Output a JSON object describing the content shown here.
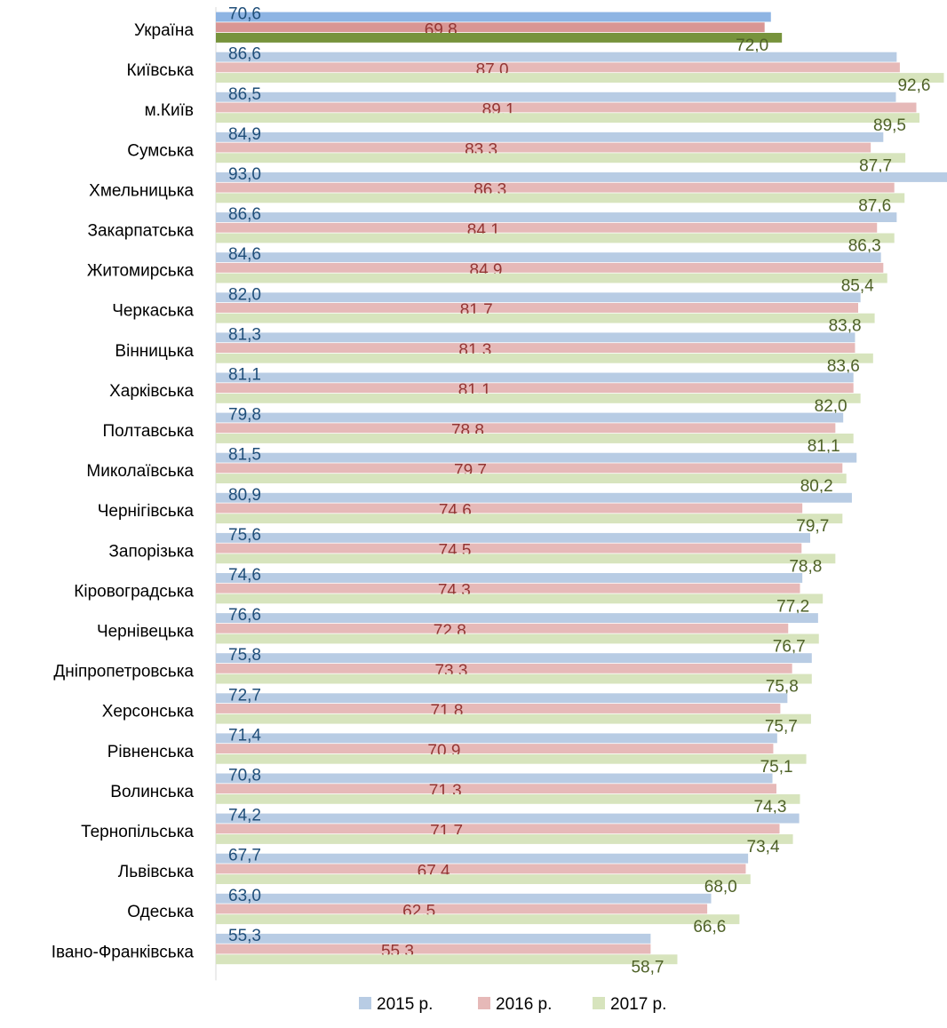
{
  "chart_data": {
    "type": "bar",
    "orientation": "horizontal",
    "categories": [
      "Україна",
      "Київська",
      "м.Київ",
      "Сумська",
      "Хмельницька",
      "Закарпатська",
      "Житомирська",
      "Черкаська",
      "Вінницька",
      "Харківська",
      "Полтавська",
      "Миколаївська",
      "Чернігівська",
      "Запорізька",
      "Кіровоградська",
      "Чернівецька",
      "Дніпропетровська",
      "Херсонська",
      "Рівненська",
      "Волинська",
      "Тернопільська",
      "Львівська",
      "Одеська",
      "Івано-Франківська"
    ],
    "series": [
      {
        "name": "2015 р.",
        "color": "#b8cce4",
        "highlight_color": "#8eb4e3",
        "label_color": "#1f4e79",
        "values": [
          70.6,
          86.6,
          86.5,
          84.9,
          93.0,
          86.6,
          84.6,
          82.0,
          81.3,
          81.1,
          79.8,
          81.5,
          80.9,
          75.6,
          74.6,
          76.6,
          75.8,
          72.7,
          71.4,
          70.8,
          74.2,
          67.7,
          63.0,
          55.3
        ],
        "labels": [
          "70,6",
          "86,6",
          "86,5",
          "84,9",
          "93,0",
          "86,6",
          "84,6",
          "82,0",
          "81,3",
          "81,1",
          "79,8",
          "81,5",
          "80,9",
          "75,6",
          "74,6",
          "76,6",
          "75,8",
          "72,7",
          "71,4",
          "70,8",
          "74,2",
          "67,7",
          "63,0",
          "55,3"
        ]
      },
      {
        "name": "2016 р.",
        "color": "#e6b9b8",
        "highlight_color": "#d99694",
        "label_color": "#943634",
        "values": [
          69.8,
          87.0,
          89.1,
          83.3,
          86.3,
          84.1,
          84.9,
          81.7,
          81.3,
          81.1,
          78.8,
          79.7,
          74.6,
          74.5,
          74.3,
          72.8,
          73.3,
          71.8,
          70.9,
          71.3,
          71.7,
          67.4,
          62.5,
          55.3
        ],
        "labels": [
          "69,8",
          "87,0",
          "89,1",
          "83,3",
          "86,3",
          "84,1",
          "84,9",
          "81,7",
          "81,3",
          "81,1",
          "78,8",
          "79,7",
          "74,6",
          "74,5",
          "74,3",
          "72,8",
          "73,3",
          "71,8",
          "70,9",
          "71,3",
          "71,7",
          "67,4",
          "62,5",
          "55,3"
        ]
      },
      {
        "name": "2017 р.",
        "color": "#d7e4bd",
        "highlight_color": "#77933c",
        "label_color": "#4f6228",
        "values": [
          72.0,
          92.6,
          89.5,
          87.7,
          87.6,
          86.3,
          85.4,
          83.8,
          83.6,
          82.0,
          81.1,
          80.2,
          79.7,
          78.8,
          77.2,
          76.7,
          75.8,
          75.7,
          75.1,
          74.3,
          73.4,
          68.0,
          66.6,
          58.7
        ],
        "labels": [
          "72,0",
          "92,6",
          "89,5",
          "87,7",
          "87,6",
          "86,3",
          "85,4",
          "83,8",
          "83,6",
          "82,0",
          "81,1",
          "80,2",
          "79,7",
          "78,8",
          "77,2",
          "76,7",
          "75,8",
          "75,7",
          "75,1",
          "74,3",
          "73,4",
          "68,0",
          "66,6",
          "58,7"
        ]
      }
    ],
    "highlighted_category": "Україна",
    "xlim": [
      0,
      93
    ],
    "grid": false,
    "legend_position": "bottom",
    "title": "",
    "xlabel": "",
    "ylabel": ""
  }
}
